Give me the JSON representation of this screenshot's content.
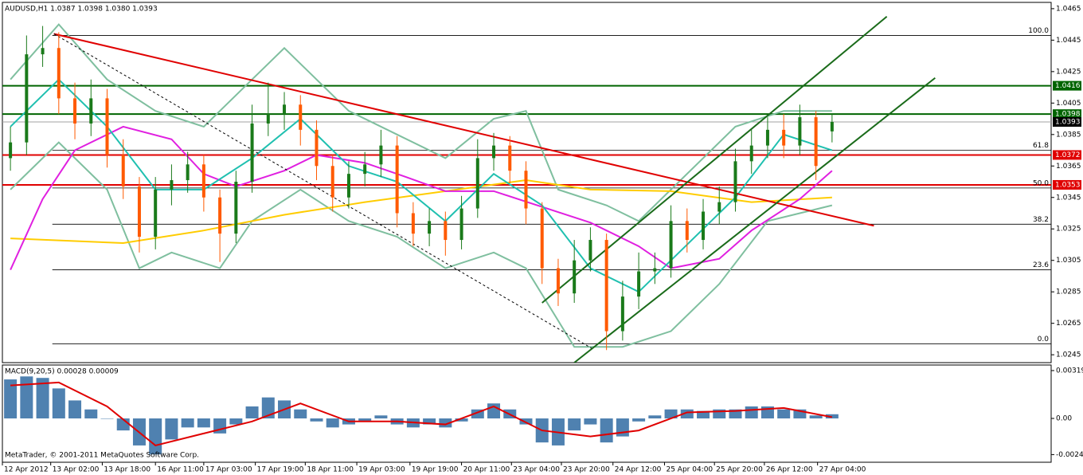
{
  "chart_data": [
    {
      "type": "candlestick",
      "title": "AUDUSD,H1  1.0387 1.0398 1.0380 1.0393",
      "xlim": [
        -0.5,
        64.6
      ],
      "ylim": [
        1.024,
        1.0469
      ],
      "yticks": [
        1.0465,
        1.0445,
        1.0425,
        1.0405,
        1.0385,
        1.0365,
        1.0345,
        1.0325,
        1.0305,
        1.0285,
        1.0265,
        1.0245
      ],
      "up_color": "#1a7a1a",
      "down_color": "#ff5a00",
      "candles": [
        [
          1.037,
          1.039,
          1.0362,
          1.038
        ],
        [
          1.038,
          1.0448,
          1.0372,
          1.0436
        ],
        [
          1.0436,
          1.0454,
          1.0428,
          1.044
        ],
        [
          1.044,
          1.045,
          1.0398,
          1.0408
        ],
        [
          1.0408,
          1.0418,
          1.0382,
          1.0392
        ],
        [
          1.0392,
          1.042,
          1.0384,
          1.0408
        ],
        [
          1.0408,
          1.0414,
          1.0364,
          1.0372
        ],
        [
          1.0372,
          1.0382,
          1.0344,
          1.0352
        ],
        [
          1.0352,
          1.0358,
          1.031,
          1.032
        ],
        [
          1.032,
          1.0358,
          1.0312,
          1.035
        ],
        [
          1.035,
          1.0366,
          1.034,
          1.0356
        ],
        [
          1.0356,
          1.0374,
          1.0348,
          1.0366
        ],
        [
          1.0366,
          1.0372,
          1.0336,
          1.0345
        ],
        [
          1.0345,
          1.035,
          1.0304,
          1.0322
        ],
        [
          1.0322,
          1.0362,
          1.0316,
          1.0355
        ],
        [
          1.0355,
          1.0404,
          1.0348,
          1.0392
        ],
        [
          1.0392,
          1.0418,
          1.0384,
          1.0398
        ],
        [
          1.0398,
          1.0412,
          1.0388,
          1.0404
        ],
        [
          1.0404,
          1.041,
          1.0378,
          1.0388
        ],
        [
          1.0388,
          1.0394,
          1.0356,
          1.0365
        ],
        [
          1.0365,
          1.0372,
          1.0336,
          1.0345
        ],
        [
          1.0345,
          1.0368,
          1.0338,
          1.036
        ],
        [
          1.036,
          1.0374,
          1.0352,
          1.0366
        ],
        [
          1.0366,
          1.0388,
          1.0358,
          1.0378
        ],
        [
          1.0378,
          1.0384,
          1.0326,
          1.0335
        ],
        [
          1.0335,
          1.0342,
          1.0314,
          1.0322
        ],
        [
          1.0322,
          1.0338,
          1.0314,
          1.033
        ],
        [
          1.033,
          1.0336,
          1.0308,
          1.0318
        ],
        [
          1.0318,
          1.0346,
          1.0312,
          1.0338
        ],
        [
          1.0338,
          1.0382,
          1.0332,
          1.037
        ],
        [
          1.037,
          1.0386,
          1.0362,
          1.0378
        ],
        [
          1.0378,
          1.0384,
          1.0354,
          1.0362
        ],
        [
          1.0362,
          1.0368,
          1.0328,
          1.0338
        ],
        [
          1.0338,
          1.0342,
          1.029,
          1.03
        ],
        [
          1.03,
          1.0306,
          1.0276,
          1.0284
        ],
        [
          1.0284,
          1.0318,
          1.0278,
          1.0305
        ],
        [
          1.0305,
          1.0326,
          1.0298,
          1.0318
        ],
        [
          1.0318,
          1.0322,
          1.0248,
          1.026
        ],
        [
          1.026,
          1.0292,
          1.0254,
          1.0282
        ],
        [
          1.0282,
          1.031,
          1.0274,
          1.0298
        ],
        [
          1.0298,
          1.031,
          1.029,
          1.03
        ],
        [
          1.03,
          1.034,
          1.0294,
          1.033
        ],
        [
          1.033,
          1.0338,
          1.031,
          1.0318
        ],
        [
          1.0318,
          1.0344,
          1.0312,
          1.0336
        ],
        [
          1.0336,
          1.0352,
          1.0328,
          1.0342
        ],
        [
          1.0342,
          1.0376,
          1.0336,
          1.0368
        ],
        [
          1.0368,
          1.0388,
          1.036,
          1.0378
        ],
        [
          1.0378,
          1.0396,
          1.037,
          1.0388
        ],
        [
          1.0388,
          1.0398,
          1.037,
          1.0378
        ],
        [
          1.0378,
          1.0404,
          1.0372,
          1.0396
        ],
        [
          1.0396,
          1.04,
          1.0356,
          1.0365
        ],
        [
          1.0387,
          1.0398,
          1.038,
          1.0393
        ]
      ],
      "overlays": [
        {
          "color": "#7fbf9f",
          "x": [
            0,
            3,
            6,
            9,
            12,
            15,
            17,
            21,
            24,
            27,
            30,
            32,
            34,
            37,
            39,
            42,
            45,
            48,
            51
          ],
          "values": [
            1.042,
            1.0455,
            1.042,
            1.04,
            1.039,
            1.042,
            1.044,
            1.04,
            1.0385,
            1.037,
            1.0395,
            1.04,
            1.035,
            1.034,
            1.033,
            1.036,
            1.039,
            1.04,
            1.04
          ]
        },
        {
          "color": "#7fbf9f",
          "x": [
            0,
            3,
            6,
            8,
            10,
            13,
            15,
            18,
            21,
            24,
            27,
            30,
            32,
            35,
            38,
            41,
            44,
            47,
            51
          ],
          "values": [
            1.035,
            1.038,
            1.035,
            1.03,
            1.031,
            1.03,
            1.033,
            1.035,
            1.033,
            1.032,
            1.03,
            1.031,
            1.03,
            1.025,
            1.025,
            1.026,
            1.029,
            1.033,
            1.034
          ]
        },
        {
          "color": "#ffcc00",
          "x": [
            0,
            7,
            12,
            17,
            22,
            27,
            32,
            36,
            41,
            46,
            51
          ],
          "values": [
            1.0319,
            1.0316,
            1.0324,
            1.0334,
            1.0342,
            1.0349,
            1.0356,
            1.035,
            1.0349,
            1.0342,
            1.0345
          ]
        },
        {
          "color": "#e020e0",
          "x": [
            0,
            2,
            4,
            7,
            10,
            12,
            14,
            17,
            19,
            22,
            24,
            27,
            30,
            33,
            36,
            39,
            41,
            44,
            46,
            49,
            51
          ],
          "values": [
            1.0299,
            1.0344,
            1.0375,
            1.039,
            1.0382,
            1.036,
            1.0352,
            1.0362,
            1.0372,
            1.0367,
            1.036,
            1.0349,
            1.0349,
            1.0339,
            1.0329,
            1.0314,
            1.03,
            1.0306,
            1.0324,
            1.0344,
            1.0362
          ]
        },
        {
          "color": "#20c0b0",
          "x": [
            0,
            3,
            6,
            9,
            12,
            15,
            18,
            21,
            24,
            27,
            30,
            33,
            36,
            39,
            42,
            45,
            48,
            51
          ],
          "values": [
            1.039,
            1.042,
            1.039,
            1.035,
            1.035,
            1.037,
            1.0395,
            1.0365,
            1.0355,
            1.033,
            1.036,
            1.034,
            1.03,
            1.0285,
            1.0315,
            1.0345,
            1.0385,
            1.0375
          ]
        }
      ],
      "trendlines": [
        {
          "color": "#e00000",
          "dash": false,
          "x": [
            2.7,
            53.6
          ],
          "values": [
            1.0449,
            1.0327
          ]
        },
        {
          "color": "#000000",
          "dash": true,
          "x": [
            2.7,
            36.1
          ],
          "values": [
            1.0449,
            1.0249
          ]
        },
        {
          "color": "#1a6b1a",
          "dash": false,
          "x": [
            33.0,
            54.4
          ],
          "values": [
            1.0278,
            1.046
          ]
        },
        {
          "color": "#1a6b1a",
          "dash": false,
          "x": [
            35.0,
            57.4
          ],
          "values": [
            1.024,
            1.0421
          ]
        }
      ],
      "fib": {
        "x_start": 2.6,
        "levels": [
          {
            "label": "100.0",
            "price": 1.0448
          },
          {
            "label": "61.8",
            "price": 1.0375
          },
          {
            "label": "50.0",
            "price": 1.0351
          },
          {
            "label": "38.2",
            "price": 1.0328
          },
          {
            "label": "23.6",
            "price": 1.0299
          },
          {
            "label": "0.0",
            "price": 1.0252
          }
        ]
      },
      "levels": [
        {
          "price": 1.0416,
          "color": "#006400",
          "label_color": "#006400"
        },
        {
          "price": 1.0398,
          "color": "#006400",
          "label_color": "#006400"
        },
        {
          "price": 1.0393,
          "color": "#a0a0a0",
          "label_color": "#000000"
        },
        {
          "price": 1.0372,
          "color": "#e00000",
          "label_color": "#e00000"
        },
        {
          "price": 1.0353,
          "color": "#e00000",
          "label_color": "#e00000"
        }
      ]
    },
    {
      "type": "bar",
      "title": "MACD(9,20,5) 0.00028 0.00009",
      "note": "MetaTrader, © 2001-2011 MetaQuotes Software Corp.",
      "xlim": [
        -0.5,
        64.6
      ],
      "ylim": [
        -0.00292,
        0.00356
      ],
      "yticks": [
        0.00319,
        {
          "value": 0,
          "label": "0.00"
        },
        -0.00241
      ],
      "color": "#4f81b0",
      "values": [
        0.0026,
        0.0028,
        0.0027,
        0.002,
        0.0012,
        0.0006,
        0,
        -0.0008,
        -0.0018,
        -0.0024,
        -0.0014,
        -0.0006,
        -0.0006,
        -0.001,
        -0.0004,
        0.0008,
        0.0014,
        0.0012,
        0.0006,
        -0.0002,
        -0.0006,
        -0.0004,
        -0.0002,
        0.0002,
        -0.0004,
        -0.0006,
        -0.0004,
        -0.0006,
        -0.0002,
        0.0006,
        0.001,
        0.0006,
        -0.0004,
        -0.0016,
        -0.0018,
        -0.0008,
        -0.0004,
        -0.0016,
        -0.0012,
        -0.0002,
        0.0002,
        0.0006,
        0.0006,
        0.0005,
        0.0006,
        0.0006,
        0.0008,
        0.0008,
        0.0006,
        0.0006,
        0.0002,
        0.00028
      ],
      "signal": {
        "color": "#e00000",
        "x": [
          0,
          3,
          6,
          9,
          12,
          15,
          18,
          21,
          24,
          27,
          30,
          33,
          36,
          39,
          42,
          45,
          48,
          51
        ],
        "values": [
          0.0022,
          0.0024,
          0.0008,
          -0.0018,
          -0.001,
          -0.0002,
          0.001,
          -0.0002,
          -0.0002,
          -0.0004,
          0.0008,
          -0.0008,
          -0.0012,
          -0.0008,
          0.0004,
          0.0005,
          0.0007,
          9e-05
        ]
      },
      "xticks": [
        {
          "value": -0.5,
          "label": "12 Apr 2012"
        },
        {
          "value": 2.5,
          "label": "13 Apr 02:00"
        },
        {
          "value": 5.7,
          "label": "13 Apr 18:00"
        },
        {
          "value": 9.0,
          "label": "16 Apr 11:00"
        },
        {
          "value": 12.0,
          "label": "17 Apr 03:00"
        },
        {
          "value": 15.2,
          "label": "17 Apr 19:00"
        },
        {
          "value": 18.3,
          "label": "18 Apr 11:00"
        },
        {
          "value": 21.5,
          "label": "19 Apr 03:00"
        },
        {
          "value": 24.8,
          "label": "19 Apr 19:00"
        },
        {
          "value": 28.0,
          "label": "20 Apr 11:00"
        },
        {
          "value": 31.1,
          "label": "23 Apr 04:00"
        },
        {
          "value": 34.2,
          "label": "23 Apr 20:00"
        },
        {
          "value": 37.4,
          "label": "24 Apr 12:00"
        },
        {
          "value": 40.6,
          "label": "25 Apr 04:00"
        },
        {
          "value": 43.7,
          "label": "25 Apr 20:00"
        },
        {
          "value": 46.8,
          "label": "26 Apr 12:00"
        },
        {
          "value": 50.1,
          "label": "27 Apr 04:00"
        }
      ]
    }
  ]
}
